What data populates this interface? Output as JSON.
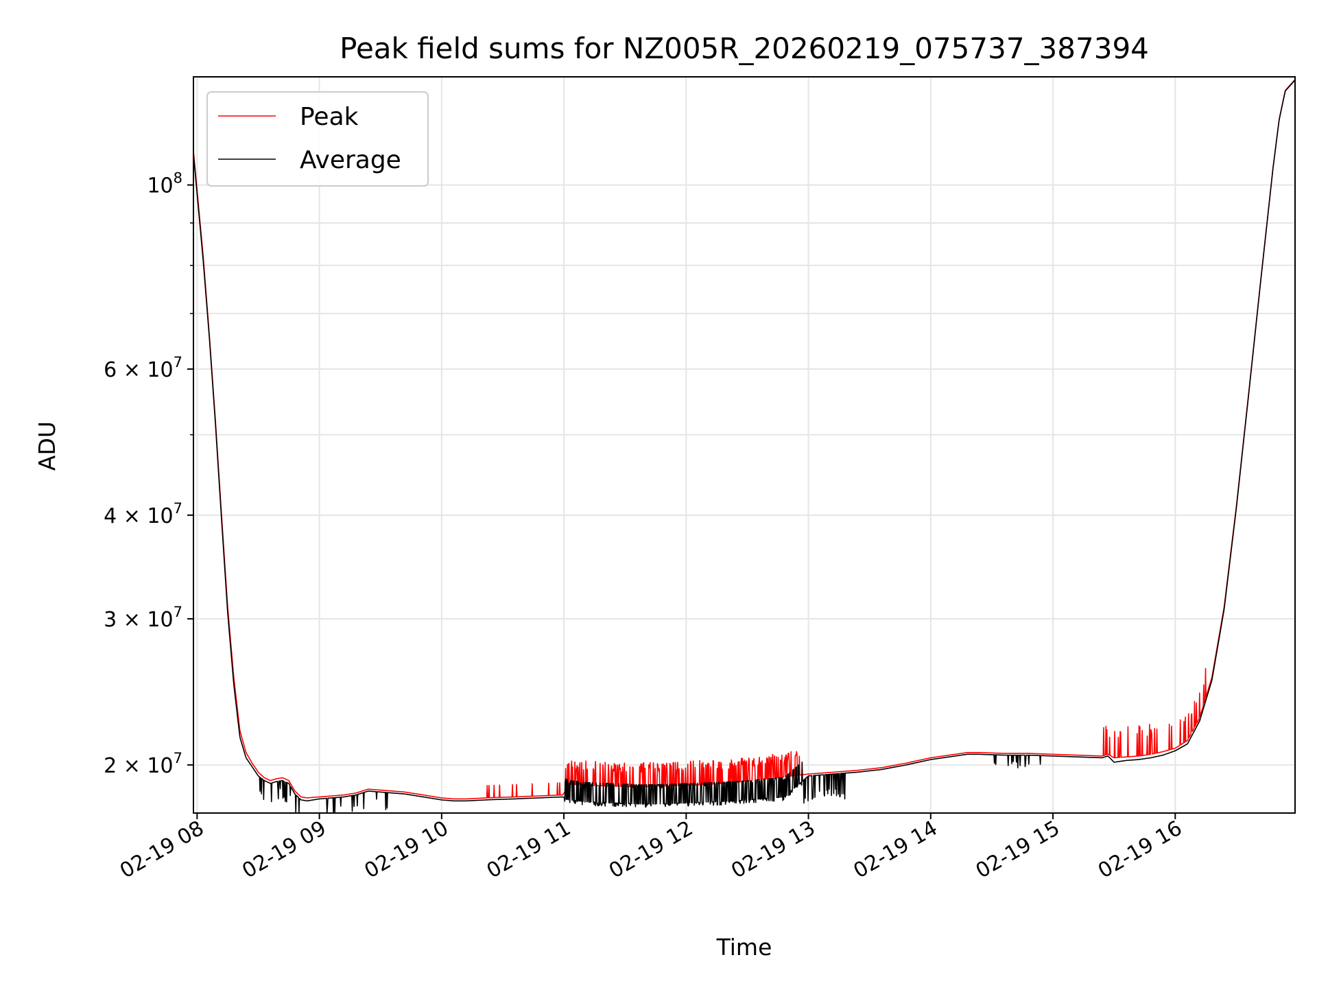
{
  "chart_data": {
    "type": "line",
    "title": "Peak field sums for NZ005R_20260219_075737_387394",
    "xlabel": "Time",
    "ylabel": "ADU",
    "yscale": "log",
    "ylim": [
      17500000,
      135000000
    ],
    "xlim": [
      7.97,
      16.98
    ],
    "grid": true,
    "legend_location": "top-left",
    "x_ticks": [
      {
        "value": 8,
        "label": "02-19 08"
      },
      {
        "value": 9,
        "label": "02-19 09"
      },
      {
        "value": 10,
        "label": "02-19 10"
      },
      {
        "value": 11,
        "label": "02-19 11"
      },
      {
        "value": 12,
        "label": "02-19 12"
      },
      {
        "value": 13,
        "label": "02-19 13"
      },
      {
        "value": 14,
        "label": "02-19 14"
      },
      {
        "value": 15,
        "label": "02-19 15"
      },
      {
        "value": 16,
        "label": "02-19 16"
      }
    ],
    "y_ticks": [
      {
        "value": 100000000,
        "base": "10",
        "exp": "8",
        "mant": ""
      },
      {
        "value": 60000000,
        "base": "10",
        "exp": "7",
        "mant": "6"
      },
      {
        "value": 40000000,
        "base": "10",
        "exp": "7",
        "mant": "4"
      },
      {
        "value": 30000000,
        "base": "10",
        "exp": "7",
        "mant": "3"
      },
      {
        "value": 20000000,
        "base": "10",
        "exp": "7",
        "mant": "2"
      }
    ],
    "y_minor_ticks": [
      90000000,
      80000000,
      70000000,
      50000000
    ],
    "series": [
      {
        "name": "Peak",
        "color": "#ff0000",
        "x": [
          7.97,
          8.05,
          8.1,
          8.15,
          8.2,
          8.25,
          8.3,
          8.35,
          8.4,
          8.45,
          8.5,
          8.55,
          8.6,
          8.65,
          8.7,
          8.75,
          8.8,
          8.85,
          8.9,
          8.95,
          9.0,
          9.1,
          9.2,
          9.3,
          9.4,
          9.5,
          9.6,
          9.7,
          9.8,
          9.9,
          10.0,
          10.1,
          10.2,
          10.3,
          10.4,
          10.5,
          10.6,
          10.7,
          10.8,
          10.9,
          10.99,
          11.05,
          11.2,
          11.4,
          11.6,
          11.8,
          12.0,
          12.2,
          12.4,
          12.6,
          12.8,
          13.0,
          13.2,
          13.4,
          13.6,
          13.8,
          14.0,
          14.2,
          14.3,
          14.4,
          14.6,
          14.8,
          15.0,
          15.2,
          15.4,
          15.45,
          15.5,
          15.6,
          15.7,
          15.8,
          15.9,
          16.0,
          16.1,
          16.2,
          16.3,
          16.4,
          16.5,
          16.6,
          16.7,
          16.8,
          16.85,
          16.9,
          16.98
        ],
        "y": [
          110000000,
          82000000,
          66000000,
          52000000,
          40000000,
          31000000,
          25500000,
          22000000,
          20700000,
          20100000,
          19600000,
          19300000,
          19150000,
          19250000,
          19300000,
          19150000,
          18600000,
          18300000,
          18250000,
          18280000,
          18300000,
          18350000,
          18400000,
          18500000,
          18700000,
          18650000,
          18600000,
          18550000,
          18450000,
          18350000,
          18250000,
          18200000,
          18200000,
          18230000,
          18260000,
          18280000,
          18300000,
          18330000,
          18350000,
          18380000,
          18400000,
          18950000,
          18900000,
          18850000,
          18820000,
          18850000,
          18900000,
          18950000,
          19050000,
          19200000,
          19350000,
          19500000,
          19600000,
          19700000,
          19850000,
          20100000,
          20400000,
          20600000,
          20700000,
          20700000,
          20650000,
          20650000,
          20600000,
          20550000,
          20500000,
          20600000,
          20400000,
          20450000,
          20500000,
          20600000,
          20750000,
          20950000,
          21400000,
          22800000,
          25500000,
          31000000,
          41000000,
          56000000,
          77000000,
          105000000,
          120000000,
          130000000,
          134000000
        ]
      },
      {
        "name": "Average",
        "color": "#000000",
        "x": [
          7.97,
          8.05,
          8.1,
          8.15,
          8.2,
          8.25,
          8.3,
          8.35,
          8.4,
          8.45,
          8.5,
          8.55,
          8.6,
          8.65,
          8.7,
          8.75,
          8.8,
          8.85,
          8.9,
          8.95,
          9.0,
          9.1,
          9.2,
          9.3,
          9.4,
          9.5,
          9.6,
          9.7,
          9.8,
          9.9,
          10.0,
          10.1,
          10.2,
          10.3,
          10.4,
          10.5,
          10.6,
          10.7,
          10.8,
          10.9,
          10.99,
          11.05,
          11.2,
          11.4,
          11.6,
          11.8,
          12.0,
          12.2,
          12.4,
          12.6,
          12.8,
          13.0,
          13.2,
          13.4,
          13.6,
          13.8,
          14.0,
          14.2,
          14.3,
          14.4,
          14.6,
          14.8,
          15.0,
          15.2,
          15.4,
          15.45,
          15.5,
          15.6,
          15.7,
          15.8,
          15.9,
          16.0,
          16.1,
          16.2,
          16.3,
          16.4,
          16.5,
          16.6,
          16.7,
          16.8,
          16.85,
          16.9,
          16.98
        ],
        "y": [
          109000000,
          81000000,
          65500000,
          51500000,
          39500000,
          30500000,
          25000000,
          21600000,
          20400000,
          19900000,
          19400000,
          19150000,
          19000000,
          19100000,
          19150000,
          19000000,
          18450000,
          18150000,
          18100000,
          18150000,
          18200000,
          18250000,
          18300000,
          18400000,
          18600000,
          18550000,
          18500000,
          18450000,
          18350000,
          18250000,
          18150000,
          18100000,
          18100000,
          18130000,
          18160000,
          18180000,
          18200000,
          18230000,
          18250000,
          18280000,
          18300000,
          18150000,
          18050000,
          18000000,
          17950000,
          17950000,
          18000000,
          18050000,
          18100000,
          18200000,
          18300000,
          19400000,
          19500000,
          19600000,
          19750000,
          20000000,
          20300000,
          20500000,
          20600000,
          20600000,
          20550000,
          20550000,
          20500000,
          20450000,
          20400000,
          20500000,
          20150000,
          20250000,
          20300000,
          20400000,
          20550000,
          20800000,
          21200000,
          22600000,
          25300000,
          30800000,
          40800000,
          55800000,
          76800000,
          104800000,
          119800000,
          129800000,
          133800000
        ]
      }
    ]
  }
}
